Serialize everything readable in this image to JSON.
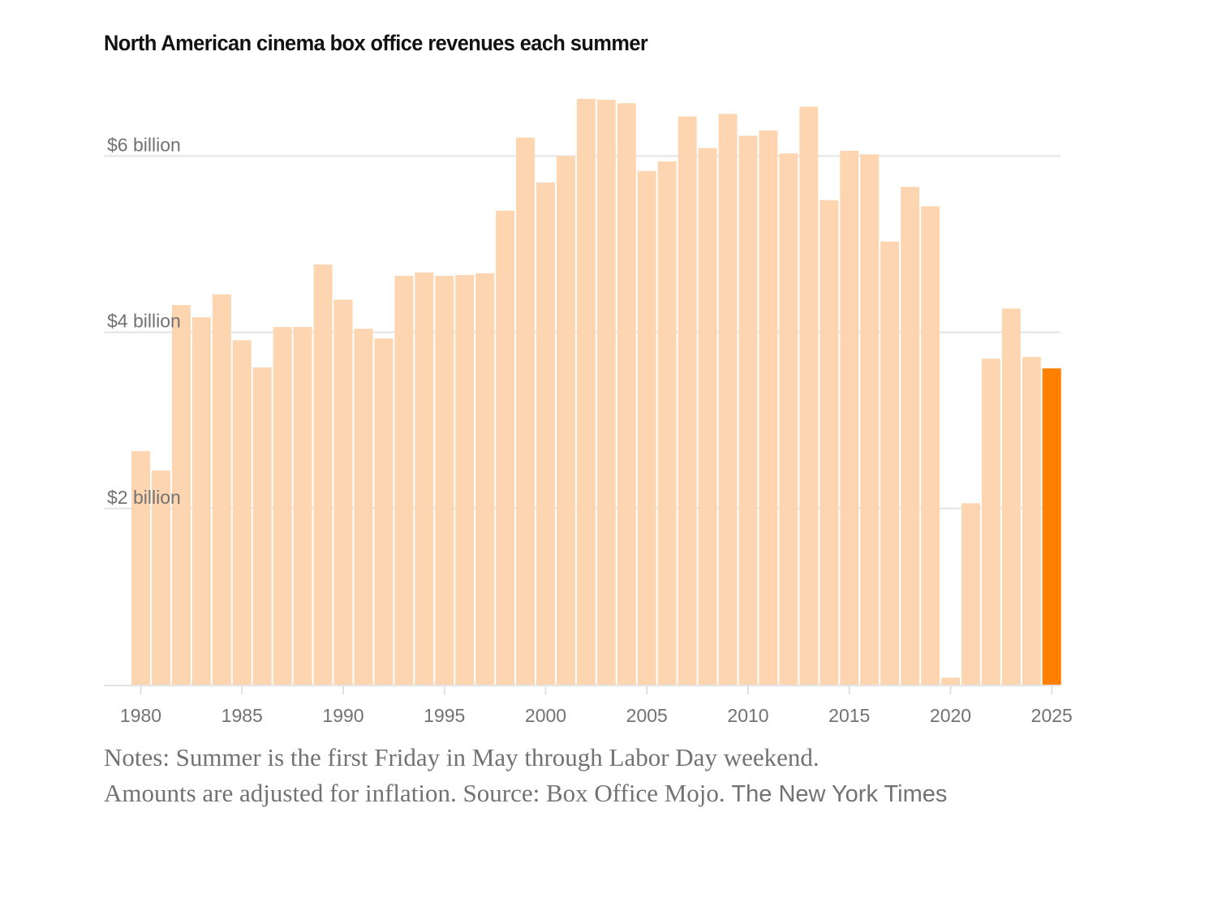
{
  "colors": {
    "bar": "#fdd6b1",
    "highlight": "#ff7f00",
    "grid": "#e4e4e4",
    "axis_text": "#727272"
  },
  "chart_data": {
    "type": "bar",
    "title": "North American cinema box office revenues each summer",
    "xlabel": "",
    "ylabel": "",
    "unit": "billion USD (inflation-adjusted)",
    "ylim": [
      0,
      6.7
    ],
    "yticks": [
      {
        "value": 2,
        "label": "$2 billion"
      },
      {
        "value": 4,
        "label": "$4 billion"
      },
      {
        "value": 6,
        "label": "$6 billion"
      }
    ],
    "xticks": [
      1980,
      1985,
      1990,
      1995,
      2000,
      2005,
      2010,
      2015,
      2020,
      2025
    ],
    "grid": true,
    "legend": "none",
    "highlighted_category": 2025,
    "categories": [
      1980,
      1981,
      1982,
      1983,
      1984,
      1985,
      1986,
      1987,
      1988,
      1989,
      1990,
      1991,
      1992,
      1993,
      1994,
      1995,
      1996,
      1997,
      1998,
      1999,
      2000,
      2001,
      2002,
      2003,
      2004,
      2005,
      2006,
      2007,
      2008,
      2009,
      2010,
      2011,
      2012,
      2013,
      2014,
      2015,
      2016,
      2017,
      2018,
      2019,
      2020,
      2021,
      2022,
      2023,
      2024,
      2025
    ],
    "values": [
      2.65,
      2.43,
      4.31,
      4.17,
      4.43,
      3.91,
      3.6,
      4.06,
      4.06,
      4.77,
      4.37,
      4.04,
      3.93,
      4.64,
      4.68,
      4.64,
      4.65,
      4.67,
      5.38,
      6.21,
      5.7,
      6.0,
      6.65,
      6.64,
      6.6,
      5.83,
      5.94,
      6.45,
      6.09,
      6.48,
      6.23,
      6.29,
      6.03,
      6.56,
      5.5,
      6.06,
      6.02,
      5.03,
      5.65,
      5.43,
      0.08,
      2.06,
      3.7,
      4.27,
      3.72,
      3.59
    ]
  },
  "notes": {
    "line1": "Notes: Summer is the first Friday in May through Labor Day weekend.",
    "line2_a": "Amounts are adjusted for inflation.  Source: Box Office Mojo.",
    "line2_b": "The New York Times"
  }
}
